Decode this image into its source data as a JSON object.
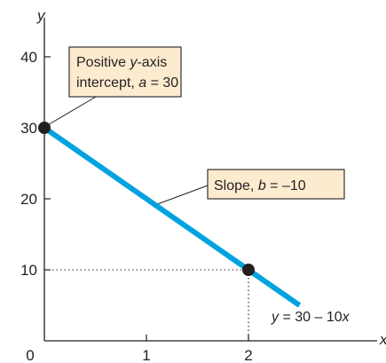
{
  "chart_data": {
    "type": "line",
    "xlabel": "x",
    "ylabel": "y",
    "xlim": [
      0,
      3.4
    ],
    "ylim": [
      0,
      45
    ],
    "x_ticks": [
      0,
      1,
      2
    ],
    "y_ticks": [
      10,
      20,
      30,
      40
    ],
    "x_tick_labels": [
      "0",
      "1",
      "2"
    ],
    "y_tick_labels": [
      "10",
      "20",
      "30",
      "40"
    ],
    "grid": false,
    "series": [
      {
        "name": "y = 30 – 10x",
        "x": [
          0,
          2.5
        ],
        "y": [
          30,
          5
        ],
        "color": "#00a3e0"
      }
    ],
    "points": [
      {
        "x": 0,
        "y": 30
      },
      {
        "x": 2,
        "y": 10
      }
    ],
    "equation": {
      "prefix": "y",
      "rest": " = 30 – 10",
      "var": "x"
    },
    "annotations": {
      "intercept": {
        "line1_a": "Positive ",
        "line1_b": "y",
        "line1_c": "-axis",
        "line2_a": "intercept, ",
        "line2_b": "a",
        "line2_c": " = 30"
      },
      "slope": {
        "text_a": "Slope, ",
        "text_b": "b",
        "text_c": " = –10"
      }
    },
    "colors": {
      "line": "#00a3e0",
      "callout_fill": "#fdebd0",
      "callout_stroke": "#231f20",
      "point": "#231f20"
    }
  }
}
